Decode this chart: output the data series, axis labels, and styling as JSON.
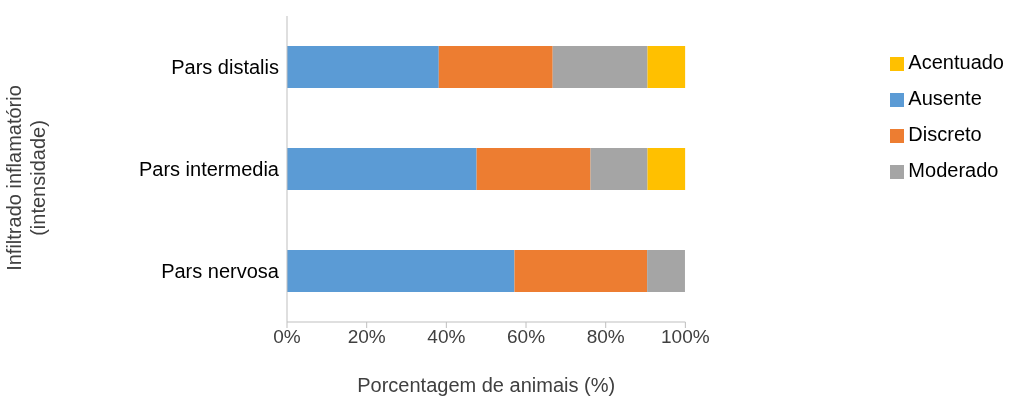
{
  "chart_data": {
    "type": "bar",
    "orientation": "horizontal",
    "stacked": true,
    "xlabel": "Porcentagem de animais (%)",
    "ylabel": "Infiltrado inflamatório (intensidade)",
    "categories": [
      "Pars distalis",
      "Pars intermedia",
      "Pars nervosa"
    ],
    "series": [
      {
        "name": "Ausente",
        "color": "#5b9bd5",
        "values": [
          38.1,
          47.6,
          57.1
        ]
      },
      {
        "name": "Discreto",
        "color": "#ed7d31",
        "values": [
          28.6,
          28.6,
          33.3
        ]
      },
      {
        "name": "Moderado",
        "color": "#a5a5a5",
        "values": [
          23.8,
          14.3,
          9.5
        ]
      },
      {
        "name": "Acentuado",
        "color": "#ffc000",
        "values": [
          9.5,
          9.5,
          0
        ]
      }
    ],
    "xlim": [
      0,
      100
    ],
    "xticks": [
      {
        "value": 0,
        "label": "0%"
      },
      {
        "value": 20,
        "label": "20%"
      },
      {
        "value": 40,
        "label": "40%"
      },
      {
        "value": 60,
        "label": "60%"
      },
      {
        "value": 80,
        "label": "80%"
      },
      {
        "value": 100,
        "label": "100%"
      }
    ],
    "grid": false,
    "legend": "right"
  }
}
